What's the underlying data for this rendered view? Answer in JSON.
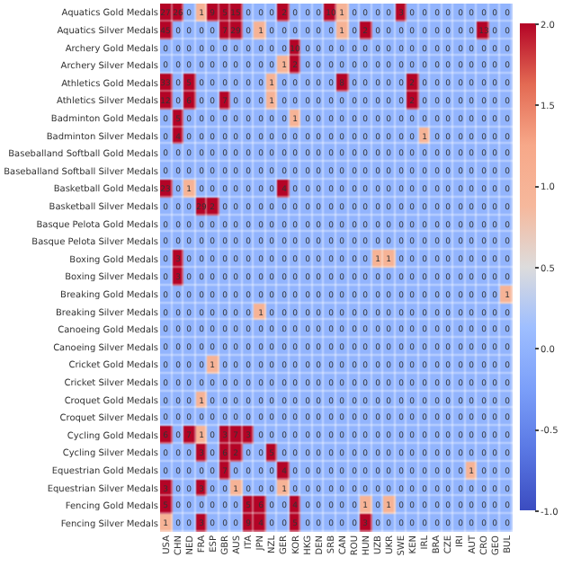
{
  "chart_data": {
    "type": "heatmap",
    "categories": [
      "USA",
      "CHN",
      "NED",
      "FRA",
      "ESP",
      "GBR",
      "AUS",
      "ITA",
      "JPN",
      "NZL",
      "GER",
      "KOR",
      "HKG",
      "DEN",
      "SRB",
      "CAN",
      "ROU",
      "HUN",
      "UZB",
      "UKR",
      "SWE",
      "KEN",
      "IRL",
      "BRA",
      "CZE",
      "IRI",
      "AUT",
      "CRO",
      "GEO",
      "BUL"
    ],
    "y_categories": [
      "Aquatics Gold Medals",
      "Aquatics Silver Medals",
      "Archery Gold Medals",
      "Archery Silver Medals",
      "Athletics Gold Medals",
      "Athletics Silver Medals",
      "Badminton Gold Medals",
      "Badminton Silver Medals",
      "Baseballand Softball Gold Medals",
      "Baseballand Softball Silver Medals",
      "Basketball Gold Medals",
      "Basketball Silver Medals",
      "Basque Pelota Gold Medals",
      "Basque Pelota Silver Medals",
      "Boxing Gold Medals",
      "Boxing Silver Medals",
      "Breaking Gold Medals",
      "Breaking Silver Medals",
      "Canoeing Gold Medals",
      "Canoeing Silver Medals",
      "Cricket Gold Medals",
      "Cricket Silver Medals",
      "Croquet Gold Medals",
      "Croquet Silver Medals",
      "Cycling Gold Medals",
      "Cycling Silver Medals",
      "Equestrian Gold Medals",
      "Equestrian Silver Medals",
      "Fencing Gold Medals",
      "Fencing Silver Medals"
    ],
    "cells": [
      [
        27,
        26,
        0,
        1,
        9,
        5,
        15,
        0,
        0,
        0,
        2,
        0,
        0,
        0,
        10,
        1,
        0,
        0,
        0,
        0,
        3,
        0,
        0,
        0,
        0,
        0,
        0,
        0,
        0,
        0
      ],
      [
        45,
        0,
        0,
        0,
        0,
        7,
        29,
        0,
        1,
        0,
        0,
        0,
        0,
        0,
        0,
        1,
        0,
        2,
        0,
        0,
        0,
        0,
        0,
        0,
        0,
        0,
        0,
        13,
        0,
        0
      ],
      [
        0,
        0,
        0,
        0,
        0,
        0,
        0,
        0,
        0,
        0,
        0,
        10,
        0,
        0,
        0,
        0,
        0,
        0,
        0,
        0,
        0,
        0,
        0,
        0,
        0,
        0,
        0,
        0,
        0,
        0
      ],
      [
        0,
        0,
        0,
        0,
        0,
        0,
        0,
        0,
        0,
        0,
        1,
        2,
        0,
        0,
        0,
        0,
        0,
        0,
        0,
        0,
        0,
        0,
        0,
        0,
        0,
        0,
        0,
        0,
        0,
        0
      ],
      [
        33,
        0,
        5,
        0,
        0,
        0,
        0,
        0,
        0,
        1,
        0,
        0,
        0,
        0,
        0,
        8,
        0,
        0,
        0,
        0,
        0,
        2,
        0,
        0,
        0,
        0,
        0,
        0,
        0,
        0
      ],
      [
        12,
        0,
        6,
        0,
        0,
        7,
        0,
        0,
        0,
        1,
        0,
        0,
        0,
        0,
        0,
        0,
        0,
        0,
        0,
        0,
        0,
        2,
        0,
        0,
        0,
        0,
        0,
        0,
        0,
        0
      ],
      [
        0,
        5,
        0,
        0,
        0,
        0,
        0,
        0,
        0,
        0,
        0,
        1,
        0,
        0,
        0,
        0,
        0,
        0,
        0,
        0,
        0,
        0,
        0,
        0,
        0,
        0,
        0,
        0,
        0,
        0
      ],
      [
        0,
        4,
        0,
        0,
        0,
        0,
        0,
        0,
        0,
        0,
        0,
        0,
        0,
        0,
        0,
        0,
        0,
        0,
        0,
        0,
        0,
        0,
        1,
        0,
        0,
        0,
        0,
        0,
        0,
        0
      ],
      [
        0,
        0,
        0,
        0,
        0,
        0,
        0,
        0,
        0,
        0,
        0,
        0,
        0,
        0,
        0,
        0,
        0,
        0,
        0,
        0,
        0,
        0,
        0,
        0,
        0,
        0,
        0,
        0,
        0,
        0
      ],
      [
        0,
        0,
        0,
        0,
        0,
        0,
        0,
        0,
        0,
        0,
        0,
        0,
        0,
        0,
        0,
        0,
        0,
        0,
        0,
        0,
        0,
        0,
        0,
        0,
        0,
        0,
        0,
        0,
        0,
        0
      ],
      [
        23,
        0,
        1,
        0,
        0,
        0,
        0,
        0,
        0,
        0,
        4,
        0,
        0,
        0,
        0,
        0,
        0,
        0,
        0,
        0,
        0,
        0,
        0,
        0,
        0,
        0,
        0,
        0,
        0,
        0
      ],
      [
        0,
        0,
        0,
        29,
        2,
        0,
        0,
        0,
        0,
        0,
        0,
        0,
        0,
        0,
        0,
        0,
        0,
        0,
        0,
        0,
        0,
        0,
        0,
        0,
        0,
        0,
        0,
        0,
        0,
        0
      ],
      [
        0,
        0,
        0,
        0,
        0,
        0,
        0,
        0,
        0,
        0,
        0,
        0,
        0,
        0,
        0,
        0,
        0,
        0,
        0,
        0,
        0,
        0,
        0,
        0,
        0,
        0,
        0,
        0,
        0,
        0
      ],
      [
        0,
        0,
        0,
        0,
        0,
        0,
        0,
        0,
        0,
        0,
        0,
        0,
        0,
        0,
        0,
        0,
        0,
        0,
        0,
        0,
        0,
        0,
        0,
        0,
        0,
        0,
        0,
        0,
        0,
        0
      ],
      [
        0,
        3,
        0,
        0,
        0,
        0,
        0,
        0,
        0,
        0,
        0,
        0,
        0,
        0,
        0,
        0,
        0,
        0,
        1,
        1,
        0,
        0,
        0,
        0,
        0,
        0,
        0,
        0,
        0,
        0
      ],
      [
        0,
        3,
        0,
        0,
        0,
        0,
        0,
        0,
        0,
        0,
        0,
        0,
        0,
        0,
        0,
        0,
        0,
        0,
        0,
        0,
        0,
        0,
        0,
        0,
        0,
        0,
        0,
        0,
        0,
        0
      ],
      [
        0,
        0,
        0,
        0,
        0,
        0,
        0,
        0,
        0,
        0,
        0,
        0,
        0,
        0,
        0,
        0,
        0,
        0,
        0,
        0,
        0,
        0,
        0,
        0,
        0,
        0,
        0,
        0,
        0,
        1
      ],
      [
        0,
        0,
        0,
        0,
        0,
        0,
        0,
        0,
        1,
        0,
        0,
        0,
        0,
        0,
        0,
        0,
        0,
        0,
        0,
        0,
        0,
        0,
        0,
        0,
        0,
        0,
        0,
        0,
        0,
        0
      ],
      [
        0,
        0,
        0,
        0,
        0,
        0,
        0,
        0,
        0,
        0,
        0,
        0,
        0,
        0,
        0,
        0,
        0,
        0,
        0,
        0,
        0,
        0,
        0,
        0,
        0,
        0,
        0,
        0,
        0,
        0
      ],
      [
        0,
        0,
        0,
        0,
        0,
        0,
        0,
        0,
        0,
        0,
        0,
        0,
        0,
        0,
        0,
        0,
        0,
        0,
        0,
        0,
        0,
        0,
        0,
        0,
        0,
        0,
        0,
        0,
        0,
        0
      ],
      [
        0,
        0,
        0,
        0,
        1,
        0,
        0,
        0,
        0,
        0,
        0,
        0,
        0,
        0,
        0,
        0,
        0,
        0,
        0,
        0,
        0,
        0,
        0,
        0,
        0,
        0,
        0,
        0,
        0,
        0
      ],
      [
        0,
        0,
        0,
        0,
        0,
        0,
        0,
        0,
        0,
        0,
        0,
        0,
        0,
        0,
        0,
        0,
        0,
        0,
        0,
        0,
        0,
        0,
        0,
        0,
        0,
        0,
        0,
        0,
        0,
        0
      ],
      [
        0,
        0,
        0,
        1,
        0,
        0,
        0,
        0,
        0,
        0,
        0,
        0,
        0,
        0,
        0,
        0,
        0,
        0,
        0,
        0,
        0,
        0,
        0,
        0,
        0,
        0,
        0,
        0,
        0,
        0
      ],
      [
        0,
        0,
        0,
        0,
        0,
        0,
        0,
        0,
        0,
        0,
        0,
        0,
        0,
        0,
        0,
        0,
        0,
        0,
        0,
        0,
        0,
        0,
        0,
        0,
        0,
        0,
        0,
        0,
        0,
        0
      ],
      [
        6,
        0,
        7,
        1,
        0,
        3,
        7,
        3,
        0,
        0,
        0,
        0,
        0,
        0,
        0,
        0,
        0,
        0,
        0,
        0,
        0,
        0,
        0,
        0,
        0,
        0,
        0,
        0,
        0,
        0
      ],
      [
        0,
        0,
        0,
        3,
        0,
        6,
        2,
        0,
        0,
        5,
        0,
        0,
        0,
        0,
        0,
        0,
        0,
        0,
        0,
        0,
        0,
        0,
        0,
        0,
        0,
        0,
        0,
        0,
        0,
        0
      ],
      [
        0,
        0,
        0,
        0,
        0,
        7,
        0,
        0,
        0,
        0,
        4,
        0,
        0,
        0,
        0,
        0,
        0,
        0,
        0,
        0,
        0,
        0,
        0,
        0,
        0,
        0,
        1,
        0,
        0,
        0
      ],
      [
        3,
        0,
        0,
        3,
        0,
        0,
        1,
        0,
        0,
        0,
        1,
        0,
        0,
        0,
        0,
        0,
        0,
        0,
        0,
        0,
        0,
        0,
        0,
        0,
        0,
        0,
        0,
        0,
        0,
        0
      ],
      [
        5,
        0,
        0,
        0,
        0,
        0,
        0,
        5,
        6,
        0,
        0,
        4,
        0,
        0,
        0,
        0,
        0,
        1,
        0,
        1,
        0,
        0,
        0,
        0,
        0,
        0,
        0,
        0,
        0,
        0
      ],
      [
        1,
        0,
        0,
        3,
        0,
        0,
        0,
        9,
        4,
        0,
        0,
        5,
        0,
        0,
        0,
        0,
        0,
        3,
        0,
        0,
        0,
        0,
        0,
        0,
        0,
        0,
        0,
        0,
        0,
        0
      ]
    ],
    "clim": [
      -1,
      2
    ],
    "cticks": [
      {
        "value": -1,
        "label": "-1.0"
      },
      {
        "value": -0.5,
        "label": "-0.5"
      },
      {
        "value": 0,
        "label": "0.0"
      },
      {
        "value": 0.5,
        "label": "0.5"
      },
      {
        "value": 1,
        "label": "1.0"
      },
      {
        "value": 1.5,
        "label": "1.5"
      },
      {
        "value": 2,
        "label": "2.0"
      }
    ],
    "data_labels": true
  }
}
